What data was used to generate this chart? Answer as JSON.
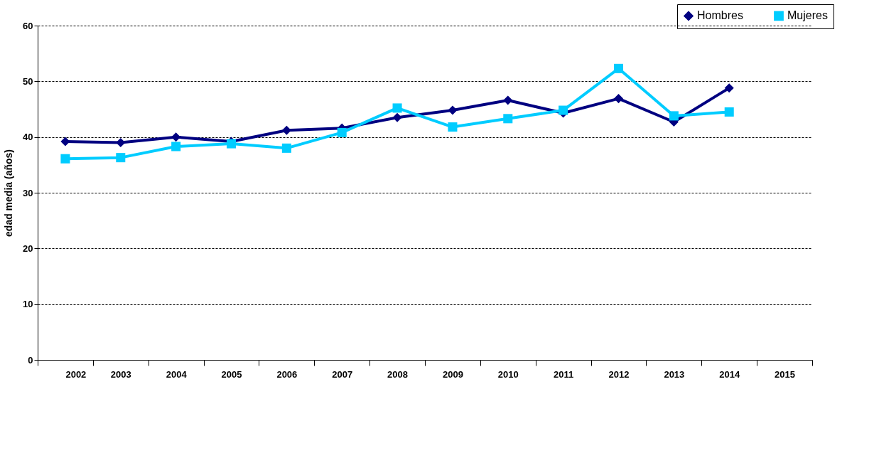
{
  "chart_data": {
    "type": "line",
    "ylabel": "edad media (años)",
    "categories": [
      "2002",
      "2003",
      "2004",
      "2005",
      "2006",
      "2007",
      "2008",
      "2009",
      "2010",
      "2011",
      "2012",
      "2013",
      "2014",
      "2015"
    ],
    "series": [
      {
        "name": "Hombres",
        "color": "#000080",
        "marker": "diamond",
        "values": [
          39.2,
          39.0,
          40.0,
          39.2,
          41.2,
          41.6,
          43.5,
          44.8,
          46.6,
          44.3,
          46.9,
          42.7,
          48.8,
          null
        ]
      },
      {
        "name": "Mujeres",
        "color": "#00ccff",
        "marker": "square",
        "values": [
          36.1,
          36.3,
          38.3,
          38.8,
          38.0,
          40.8,
          45.2,
          41.8,
          43.3,
          44.8,
          52.3,
          43.8,
          44.5,
          null
        ]
      }
    ],
    "ylim": [
      0,
      60
    ],
    "yticks": [
      0,
      10,
      20,
      30,
      40,
      50,
      60
    ],
    "grid": "y",
    "legend": "top right",
    "line_style": "solid"
  }
}
